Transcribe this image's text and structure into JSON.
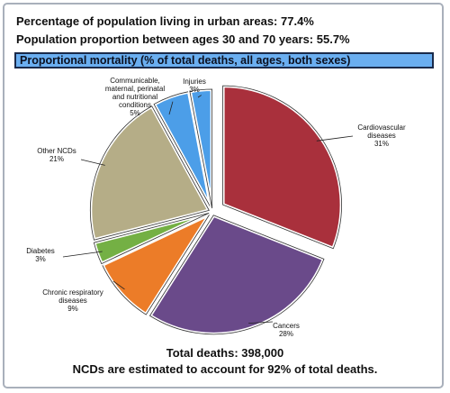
{
  "header": {
    "urban_line": "Percentage of population living in urban areas: 77.4%",
    "age_line": "Population proportion between ages 30 and 70 years:  55.7%"
  },
  "chart_data": {
    "type": "pie",
    "title": "Proportional mortality (% of total deaths, all ages, both sexes)",
    "slices": [
      {
        "label": [
          "Cardiovascular",
          "diseases",
          "31%"
        ],
        "value": 31,
        "color": "#a9303c",
        "exploded": true
      },
      {
        "label": [
          "Cancers",
          "28%"
        ],
        "value": 28,
        "color": "#6a4a8a",
        "exploded": false
      },
      {
        "label": [
          "Chronic respiratory",
          "diseases",
          "9%"
        ],
        "value": 9,
        "color": "#ec7c28",
        "exploded": false
      },
      {
        "label": [
          "Diabetes",
          "3%"
        ],
        "value": 3,
        "color": "#74b044",
        "exploded": false
      },
      {
        "label": [
          "Other NCDs",
          "21%"
        ],
        "value": 21,
        "color": "#b5ad87",
        "exploded": false
      },
      {
        "label": [
          "Communicable,",
          "maternal, perinatal",
          "and nutritional",
          "conditions",
          "5%"
        ],
        "value": 5,
        "color": "#4c9ee8",
        "exploded": false
      },
      {
        "label": [
          "Injuries",
          "3%"
        ],
        "value": 3,
        "color": "#4c9ee8",
        "exploded": false
      }
    ]
  },
  "footer": {
    "total_line": "Total deaths: 398,000",
    "ncd_line": "NCDs are estimated to account for 92% of total deaths."
  }
}
